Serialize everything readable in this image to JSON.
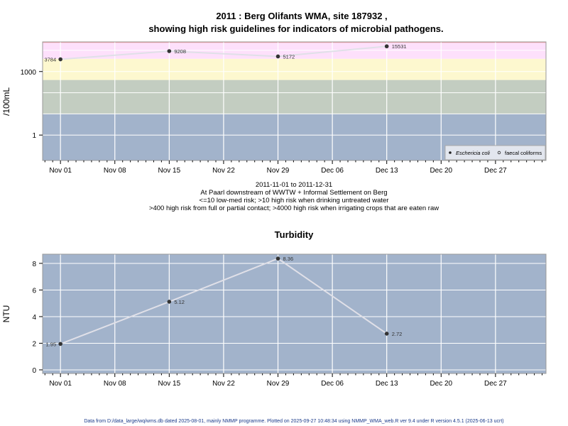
{
  "colors": {
    "band_blue": "#a2b3cb",
    "band_grey": "#c3cdc1",
    "band_yellow": "#fdf8cf",
    "band_pink": "#fde0fb",
    "band_top": "#f4a0a0",
    "panel_frame": "#999999",
    "line": "#e0e0e8",
    "point": "#333333"
  },
  "chart_data": [
    {
      "type": "line",
      "title_line1": "2011 : Berg Olifants WMA, site 187932 ,",
      "title_line2": "showing high risk guidelines for indicators of microbial pathogens.",
      "ylabel": "/100mL",
      "yscale": "log10",
      "ylim_log10": [
        -1.2,
        4.4
      ],
      "yticks": [
        {
          "value": 1,
          "label": "1"
        },
        {
          "value": 1000,
          "label": "1000"
        }
      ],
      "xlim_days_from_nov01": [
        -2.3,
        62.5
      ],
      "xticks": [
        {
          "day": 0,
          "label": "Nov 01"
        },
        {
          "day": 7,
          "label": "Nov 08"
        },
        {
          "day": 14,
          "label": "Nov 15"
        },
        {
          "day": 21,
          "label": "Nov 22"
        },
        {
          "day": 28,
          "label": "Nov 29"
        },
        {
          "day": 35,
          "label": "Dec 06"
        },
        {
          "day": 42,
          "label": "Dec 13"
        },
        {
          "day": 49,
          "label": "Dec 20"
        },
        {
          "day": 56,
          "label": "Dec 27"
        }
      ],
      "bands": [
        {
          "from": 0.01,
          "to": 10,
          "color": "band_blue"
        },
        {
          "from": 10,
          "to": 400,
          "color": "band_grey"
        },
        {
          "from": 400,
          "to": 4000,
          "color": "band_yellow"
        },
        {
          "from": 4000,
          "to": 1000000,
          "color": "band_pink"
        }
      ],
      "series": [
        {
          "name": "Eschericia coli",
          "points": [
            {
              "day": 0,
              "value": 3784,
              "label": "3784"
            },
            {
              "day": 14,
              "value": 9208,
              "label": "9208"
            },
            {
              "day": 28,
              "value": 5172,
              "label": "5172"
            },
            {
              "day": 42,
              "value": 15531,
              "label": "15531"
            }
          ]
        }
      ],
      "legend": {
        "position": "bottom-right",
        "entries": [
          "Eschericia coli",
          "faecal coliforms"
        ]
      },
      "caption": [
        "2011-11-01 to 2011-12-31",
        "At Paarl downstream of WWTW + Informal Settlement on Berg",
        "<=10 low-med risk; >10 high risk when drinking untreated water",
        ">400 high risk from full or partial contact; >4000 high risk when irrigating crops that are eaten raw"
      ]
    },
    {
      "type": "line",
      "title": "Turbidity",
      "ylabel": "NTU",
      "ylim": [
        -0.27,
        8.69
      ],
      "yticks": [
        0,
        2,
        4,
        6,
        8
      ],
      "xlim_days_from_nov01": [
        -2.3,
        62.5
      ],
      "xticks": [
        {
          "day": 0,
          "label": "Nov 01"
        },
        {
          "day": 7,
          "label": "Nov 08"
        },
        {
          "day": 14,
          "label": "Nov 15"
        },
        {
          "day": 21,
          "label": "Nov 22"
        },
        {
          "day": 28,
          "label": "Nov 29"
        },
        {
          "day": 35,
          "label": "Dec 06"
        },
        {
          "day": 42,
          "label": "Dec 13"
        },
        {
          "day": 49,
          "label": "Dec 20"
        },
        {
          "day": 56,
          "label": "Dec 27"
        }
      ],
      "series": [
        {
          "name": "Turbidity",
          "points": [
            {
              "day": 0,
              "value": 1.95,
              "label": "1.95"
            },
            {
              "day": 14,
              "value": 5.12,
              "label": "5.12"
            },
            {
              "day": 28,
              "value": 8.36,
              "label": "8.36"
            },
            {
              "day": 42,
              "value": 2.72,
              "label": "2.72"
            }
          ]
        }
      ]
    }
  ],
  "footer": "Data from D:/data_large/wq/wms.db dated 2025-08-01, mainly NMMP programme. Plotted on 2025-09-27 10:48:34 using NMMP_WMA_web.R ver 9.4 under R version 4.5.1 (2025-06-13 ucrt)"
}
